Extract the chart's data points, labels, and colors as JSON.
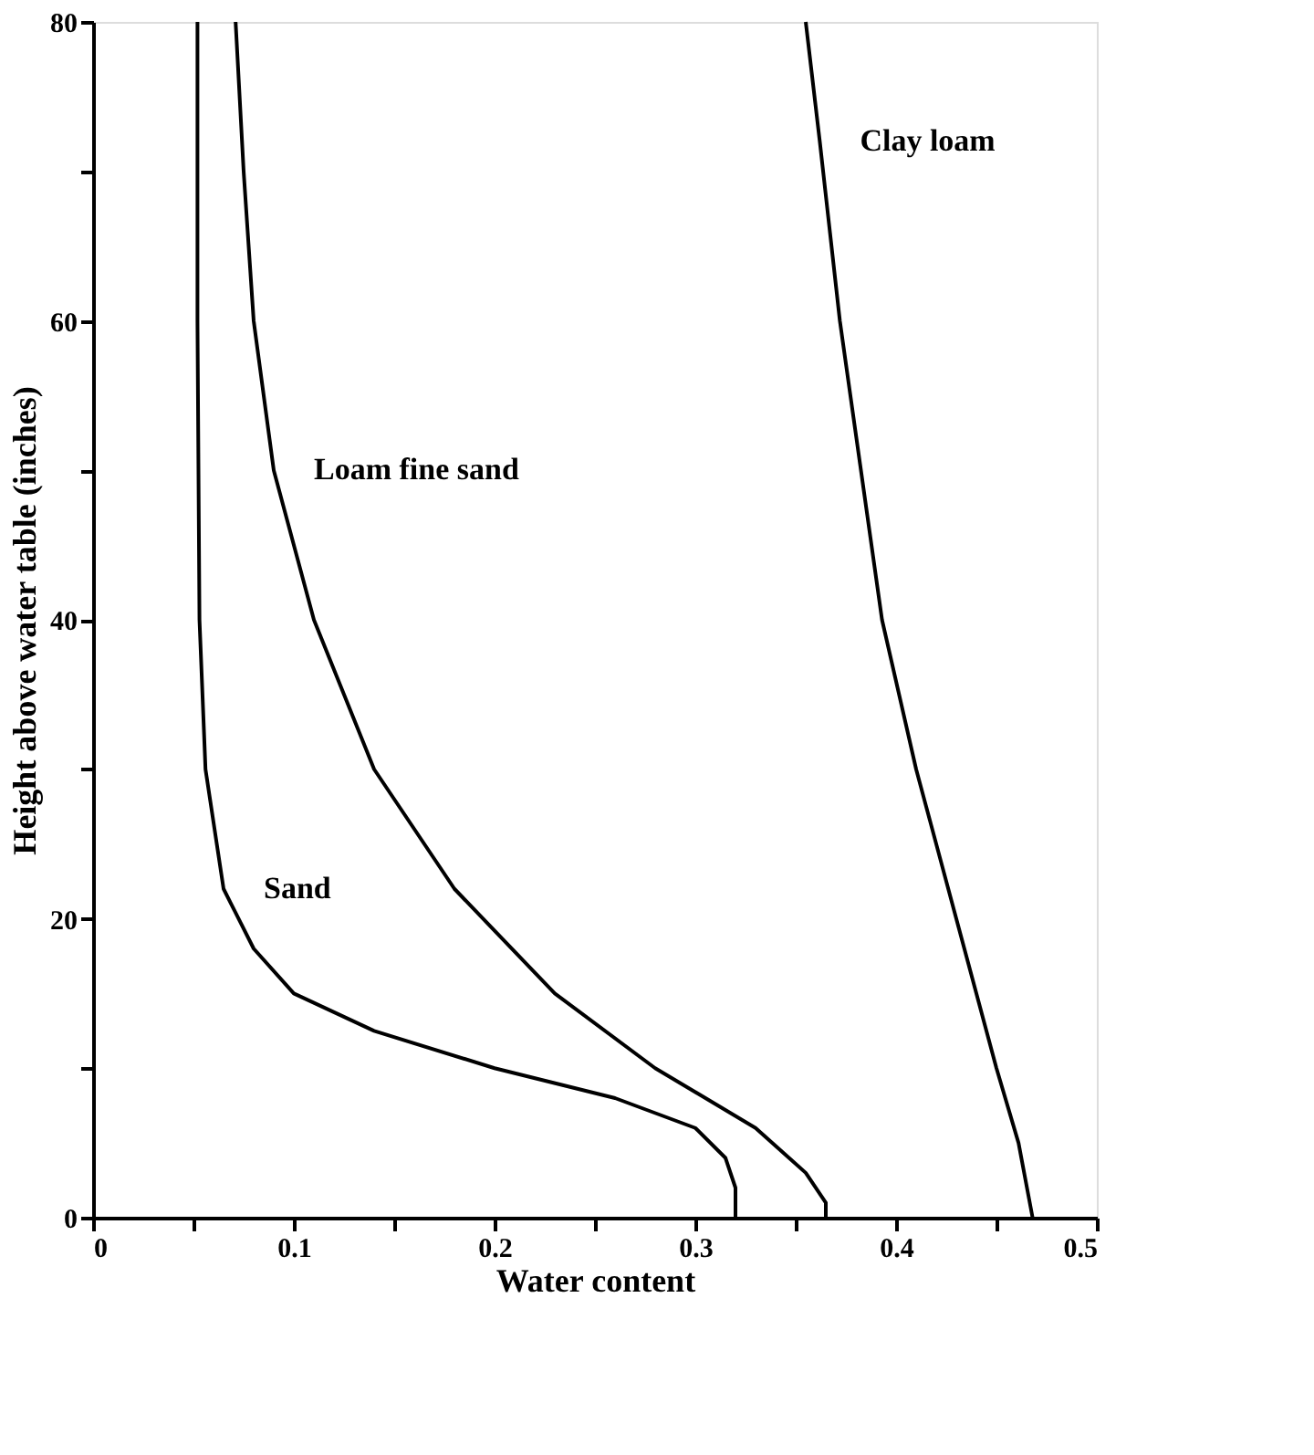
{
  "chart_data": {
    "type": "line",
    "xlabel": "Water content",
    "ylabel": "Height above water table (inches)",
    "xlim": [
      0,
      0.5
    ],
    "ylim": [
      0,
      80
    ],
    "xticks": [
      0,
      {
        "value": 0.05,
        "label": null
      },
      0.1,
      {
        "value": 0.15,
        "label": null
      },
      0.2,
      {
        "value": 0.25,
        "label": null
      },
      0.3,
      {
        "value": 0.35,
        "label": null
      },
      0.4,
      {
        "value": 0.45,
        "label": null
      },
      0.5
    ],
    "yticks": [
      0,
      {
        "value": 10,
        "label": null
      },
      20,
      {
        "value": 30,
        "label": null
      },
      40,
      {
        "value": 50,
        "label": null
      },
      60,
      {
        "value": 70,
        "label": null
      },
      80
    ],
    "grid": false,
    "marker": "none",
    "line_style": "solid",
    "series": [
      {
        "color": "#000000",
        "x": [
          0.052,
          0.052,
          0.053,
          0.056,
          0.065,
          0.08,
          0.1,
          0.14,
          0.2,
          0.26,
          0.3,
          0.315,
          0.32,
          0.32
        ],
        "values": [
          80,
          60,
          40,
          30,
          22,
          18,
          15,
          12.5,
          10,
          8,
          6,
          4,
          2,
          0
        ]
      },
      {
        "color": "#000000",
        "x": [
          0.071,
          0.075,
          0.08,
          0.09,
          0.11,
          0.14,
          0.18,
          0.23,
          0.28,
          0.33,
          0.355,
          0.365,
          0.365
        ],
        "values": [
          80,
          70,
          60,
          50,
          40,
          30,
          22,
          15,
          10,
          6,
          3,
          1,
          0
        ]
      },
      {
        "color": "#000000",
        "x": [
          0.355,
          0.362,
          0.372,
          0.393,
          0.41,
          0.43,
          0.45,
          0.461,
          0.468
        ],
        "values": [
          80,
          72,
          60,
          40,
          30,
          20,
          10,
          5,
          0
        ]
      }
    ],
    "annotations": [
      {
        "text": "Clay loam",
        "x": 0.362,
        "y": 72
      },
      {
        "text": "Loam fine sand",
        "x": 0.09,
        "y": 50
      },
      {
        "text": "Sand",
        "x": 0.065,
        "y": 22
      }
    ]
  }
}
